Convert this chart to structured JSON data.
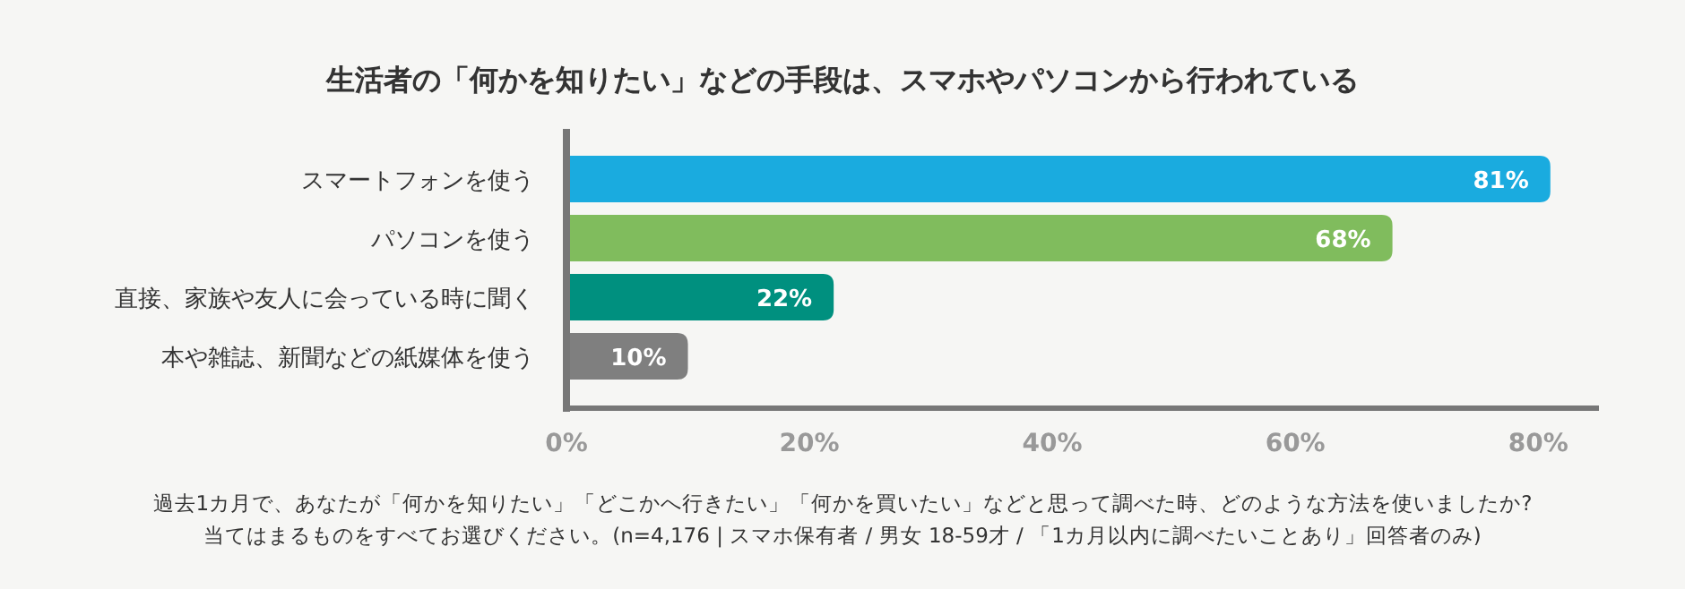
{
  "chart_data": {
    "type": "bar",
    "orientation": "horizontal",
    "title": "生活者の「何かを知りたい」などの手段は、スマホやパソコンから行われている",
    "categories": [
      "スマートフォンを使う",
      "パソコンを使う",
      "直接、家族や友人に会っている時に聞く",
      "本や雑誌、新聞などの紙媒体を使う"
    ],
    "values": [
      81,
      68,
      22,
      10
    ],
    "colors": [
      "#1aabdf",
      "#80bc5d",
      "#00907f",
      "#7f7f7f"
    ],
    "xlim": [
      0,
      85
    ],
    "xticks": [
      {
        "value": 0,
        "label": "0%"
      },
      {
        "value": 20,
        "label": "20%"
      },
      {
        "value": 40,
        "label": "40%"
      },
      {
        "value": 60,
        "label": "60%"
      },
      {
        "value": 80,
        "label": "80%"
      }
    ],
    "value_labels": [
      "81%",
      "68%",
      "22%",
      "10%"
    ],
    "annotations": [
      "過去1カ月で、あなたが「何かを知りたい」「どこかへ行きたい」「何かを買いたい」などと思って調べた時、どのような方法を使いましたか?",
      "当てはまるものをすべてお選びください。(n=4,176 | スマホ保有者 / 男女 18-59才 / 「1カ月以内に調べたいことあり」回答者のみ)"
    ]
  }
}
